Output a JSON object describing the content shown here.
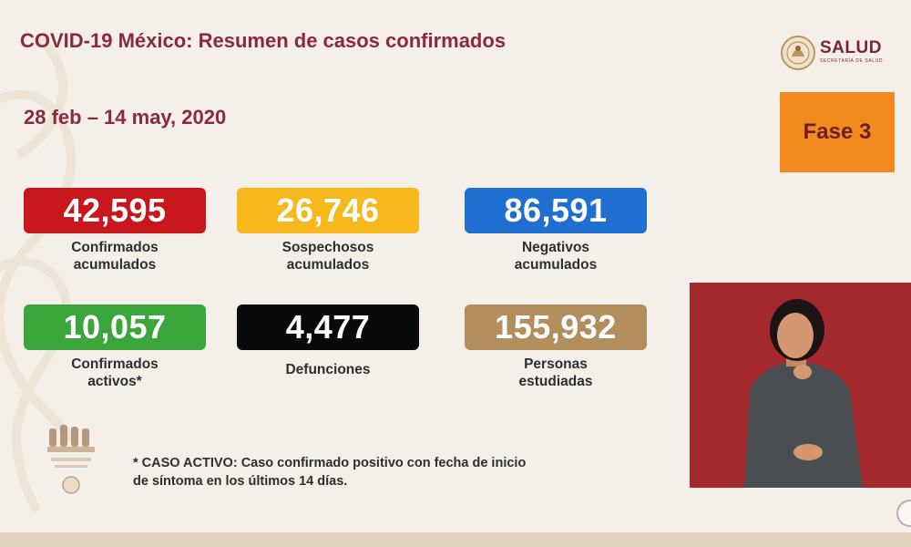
{
  "header": {
    "title": "COVID-19 México: Resumen de casos confirmados",
    "date_range": "28 feb – 14 may, 2020"
  },
  "logo": {
    "brand": "SALUD",
    "subtitle": "SECRETARÍA DE SALUD",
    "icon": "coat-of-arms-seal-icon"
  },
  "phase_badge": {
    "label": "Fase 3",
    "color": "#f28a1d"
  },
  "stats": [
    {
      "value": "42,595",
      "label_line1": "Confirmados",
      "label_line2": "acumulados",
      "color": "#c8161d"
    },
    {
      "value": "26,746",
      "label_line1": "Sospechosos",
      "label_line2": "acumulados",
      "color": "#f6b81c"
    },
    {
      "value": "86,591",
      "label_line1": "Negativos",
      "label_line2": "acumulados",
      "color": "#1f6fd0"
    },
    {
      "value": "10,057",
      "label_line1": "Confirmados",
      "label_line2": "activos*",
      "color": "#3aa63c"
    },
    {
      "value": "4,477",
      "label_line1": "Defunciones",
      "label_line2": "",
      "color": "#0a0a0a"
    },
    {
      "value": "155,932",
      "label_line1": "Personas",
      "label_line2": "estudiadas",
      "color": "#b38e5d"
    }
  ],
  "footnote": {
    "line1": "* CASO ACTIVO: Caso confirmado positivo con fecha de inicio",
    "line2": "de síntoma en los últimos 14 días."
  },
  "sign_language_video": {
    "background_color": "#a3292c"
  }
}
